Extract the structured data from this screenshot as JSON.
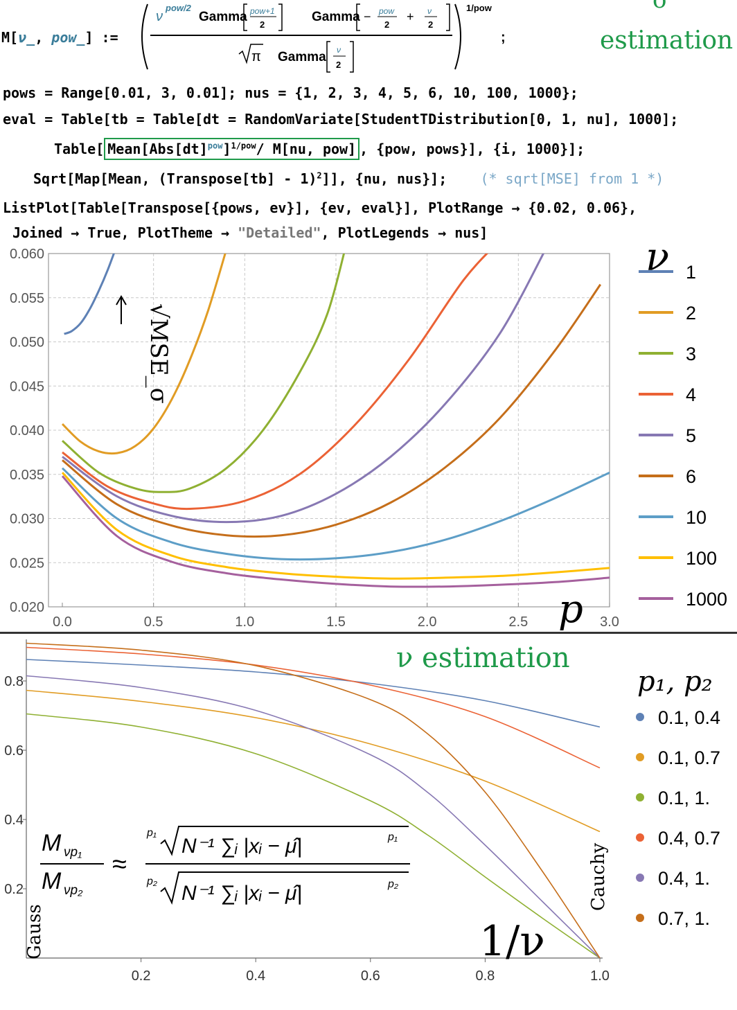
{
  "header": {
    "def_lhs": "M[ν_, pow_] :=",
    "def_num_nu": "ν",
    "def_num_exp": "pow/2",
    "gamma": "Gamma",
    "frac_pow_plus": "pow+1",
    "two": "2",
    "minus_pow": "−",
    "pow": "pow",
    "plus": "+",
    "nu_sym": "ν",
    "sqrt_pi": "π",
    "outer_exp": "1/pow",
    "semicolon": ";",
    "sigma_title": "σ",
    "sigma_title2": "estimation"
  },
  "code": {
    "line1": "pows = Range[0.01, 3, 0.01]; nus = {1, 2, 3, 4, 5, 6, 10, 100, 1000};",
    "line2": "eval = Table[tb = Table[dt = RandomVariate[StudentTDistribution[0, 1, nu], 1000];",
    "line3a": "Table[",
    "line3_box": "Mean[Abs[dt]",
    "line3_sup1": "pow",
    "line3_box2": "]",
    "line3_sup2": "1/pow",
    "line3_box3": "/ M[nu, pow]",
    "line3b": ", {pow, pows}], {i, 1000}];",
    "line4": "Sqrt[Map[Mean, (Transpose[tb] - 1)",
    "line4_sup": "2",
    "line4b": "]], {nu, nus}];",
    "line4_comment": "(* sqrt[MSE] from 1 *)",
    "line5": "ListPlot[Table[Transpose[{pows, ev}], {ev, eval}], PlotRange → {0.02, 0.06},",
    "line6a": "Joined → True, PlotTheme → ",
    "line6_str": "\"Detailed\"",
    "line6b": ", PlotLegends → nus]"
  },
  "chart_data": [
    {
      "type": "line",
      "title": "σ estimation",
      "xlabel": "p",
      "ylabel": "√MSE_σ",
      "xlim": [
        0,
        3.0
      ],
      "ylim": [
        0.02,
        0.06
      ],
      "x_ticks": [
        "0.0",
        "0.5",
        "1.0",
        "1.5",
        "2.0",
        "2.5",
        "3.0"
      ],
      "y_ticks": [
        "0.020",
        "0.025",
        "0.030",
        "0.035",
        "0.040",
        "0.045",
        "0.050",
        "0.055",
        "0.060"
      ],
      "legend_title": "ν",
      "grid": true,
      "series": [
        {
          "name": "1",
          "color": "#5e81b5",
          "x": [
            0.01,
            0.05,
            0.1,
            0.15,
            0.2,
            0.25,
            0.3
          ],
          "values": [
            0.0509,
            0.0512,
            0.0521,
            0.0537,
            0.0558,
            0.0582,
            0.061
          ]
        },
        {
          "name": "2",
          "color": "#e19c24",
          "x": [
            0.0,
            0.1,
            0.2,
            0.3,
            0.4,
            0.5,
            0.6,
            0.7,
            0.8,
            0.9
          ],
          "values": [
            0.0407,
            0.0387,
            0.0376,
            0.0374,
            0.0382,
            0.0402,
            0.0435,
            0.048,
            0.0536,
            0.0605
          ]
        },
        {
          "name": "3",
          "color": "#8fb032",
          "x": [
            0.0,
            0.2,
            0.4,
            0.55,
            0.7,
            0.9,
            1.1,
            1.3,
            1.45,
            1.55
          ],
          "values": [
            0.0388,
            0.0352,
            0.0334,
            0.033,
            0.0334,
            0.0357,
            0.04,
            0.0465,
            0.053,
            0.0605
          ]
        },
        {
          "name": "4",
          "color": "#eb6235",
          "x": [
            0.0,
            0.25,
            0.5,
            0.7,
            1.0,
            1.3,
            1.6,
            1.9,
            2.2,
            2.4
          ],
          "values": [
            0.0375,
            0.0336,
            0.0317,
            0.0311,
            0.032,
            0.035,
            0.0405,
            0.048,
            0.057,
            0.0615
          ]
        },
        {
          "name": "5",
          "color": "#8778b3",
          "x": [
            0.0,
            0.3,
            0.6,
            0.9,
            1.2,
            1.5,
            1.8,
            2.1,
            2.4,
            2.65
          ],
          "values": [
            0.037,
            0.0325,
            0.0303,
            0.0296,
            0.0303,
            0.0328,
            0.037,
            0.043,
            0.051,
            0.0605
          ]
        },
        {
          "name": "6",
          "color": "#c56e1a",
          "x": [
            0.0,
            0.3,
            0.6,
            0.9,
            1.2,
            1.5,
            1.8,
            2.1,
            2.4,
            2.7,
            2.95
          ],
          "values": [
            0.0366,
            0.0316,
            0.0292,
            0.0281,
            0.0281,
            0.0293,
            0.0318,
            0.0358,
            0.0414,
            0.049,
            0.0565
          ]
        },
        {
          "name": "10",
          "color": "#5d9ec7",
          "x": [
            0.0,
            0.3,
            0.6,
            0.9,
            1.2,
            1.5,
            1.8,
            2.1,
            2.4,
            2.7,
            3.0
          ],
          "values": [
            0.0357,
            0.03,
            0.0273,
            0.026,
            0.0254,
            0.0255,
            0.0262,
            0.0276,
            0.0297,
            0.0323,
            0.0352
          ]
        },
        {
          "name": "100",
          "color": "#ffbf00",
          "x": [
            0.0,
            0.3,
            0.6,
            0.9,
            1.2,
            1.5,
            1.8,
            2.1,
            2.4,
            2.7,
            3.0
          ],
          "values": [
            0.0352,
            0.0287,
            0.0258,
            0.0245,
            0.0238,
            0.0234,
            0.0232,
            0.0233,
            0.0235,
            0.0239,
            0.0244
          ]
        },
        {
          "name": "1000",
          "color": "#a5609d",
          "x": [
            0.0,
            0.3,
            0.6,
            0.9,
            1.2,
            1.5,
            1.8,
            2.1,
            2.4,
            2.7,
            3.0
          ],
          "values": [
            0.0348,
            0.028,
            0.0251,
            0.0238,
            0.0231,
            0.0226,
            0.0223,
            0.0223,
            0.0225,
            0.0228,
            0.0233
          ]
        }
      ]
    },
    {
      "type": "line",
      "title": "ν estimation",
      "xlabel": "1/ν",
      "xlim": [
        0,
        1.0
      ],
      "ylim": [
        0.0,
        0.92
      ],
      "x_ticks": [
        "0.2",
        "0.4",
        "0.6",
        "0.8",
        "1.0"
      ],
      "y_ticks": [
        "0.2",
        "0.4",
        "0.6",
        "0.8"
      ],
      "left_label": "Gauss",
      "right_label": "Cauchy",
      "legend_title": "p₁, p₂",
      "grid": false,
      "series": [
        {
          "name": "0.1, 0.4",
          "color": "#5e81b5",
          "x": [
            0.0,
            0.2,
            0.4,
            0.6,
            0.8,
            1.0
          ],
          "values": [
            0.862,
            0.846,
            0.826,
            0.793,
            0.743,
            0.667
          ]
        },
        {
          "name": "0.1, 0.7",
          "color": "#e19c24",
          "x": [
            0.0,
            0.2,
            0.4,
            0.6,
            0.8,
            1.0
          ],
          "values": [
            0.773,
            0.741,
            0.694,
            0.618,
            0.511,
            0.365
          ]
        },
        {
          "name": "0.1, 1.",
          "color": "#8fb032",
          "x": [
            0.0,
            0.2,
            0.4,
            0.6,
            0.7,
            0.8,
            0.9,
            1.0
          ],
          "values": [
            0.705,
            0.667,
            0.59,
            0.454,
            0.355,
            0.234,
            0.115,
            0.0
          ]
        },
        {
          "name": "0.4, 0.7",
          "color": "#eb6235",
          "x": [
            0.0,
            0.2,
            0.4,
            0.6,
            0.8,
            1.0
          ],
          "values": [
            0.897,
            0.878,
            0.846,
            0.788,
            0.697,
            0.549
          ]
        },
        {
          "name": "0.4, 1.",
          "color": "#8778b3",
          "x": [
            0.0,
            0.2,
            0.4,
            0.6,
            0.7,
            0.8,
            0.9,
            1.0
          ],
          "values": [
            0.815,
            0.781,
            0.715,
            0.587,
            0.478,
            0.326,
            0.163,
            0.0
          ]
        },
        {
          "name": "0.7, 1.",
          "color": "#c56e1a",
          "x": [
            0.0,
            0.2,
            0.4,
            0.6,
            0.7,
            0.8,
            0.9,
            1.0
          ],
          "values": [
            0.909,
            0.889,
            0.844,
            0.746,
            0.647,
            0.479,
            0.25,
            0.0
          ]
        }
      ]
    }
  ],
  "formula": {
    "lhs_num": "M",
    "lhs_num_sub": "νp₁",
    "lhs_den": "M",
    "lhs_den_sub": "νp₂",
    "approx": "≈",
    "root_idx_top": "p₁",
    "root_idx_bot": "p₂",
    "rad_top": "N⁻¹ ∑ᵢ |xᵢ − μ̂|",
    "rad_top_exp": "p₁",
    "rad_bot": "N⁻¹ ∑ᵢ |xᵢ − μ̂|",
    "rad_bot_exp": "p₂"
  }
}
